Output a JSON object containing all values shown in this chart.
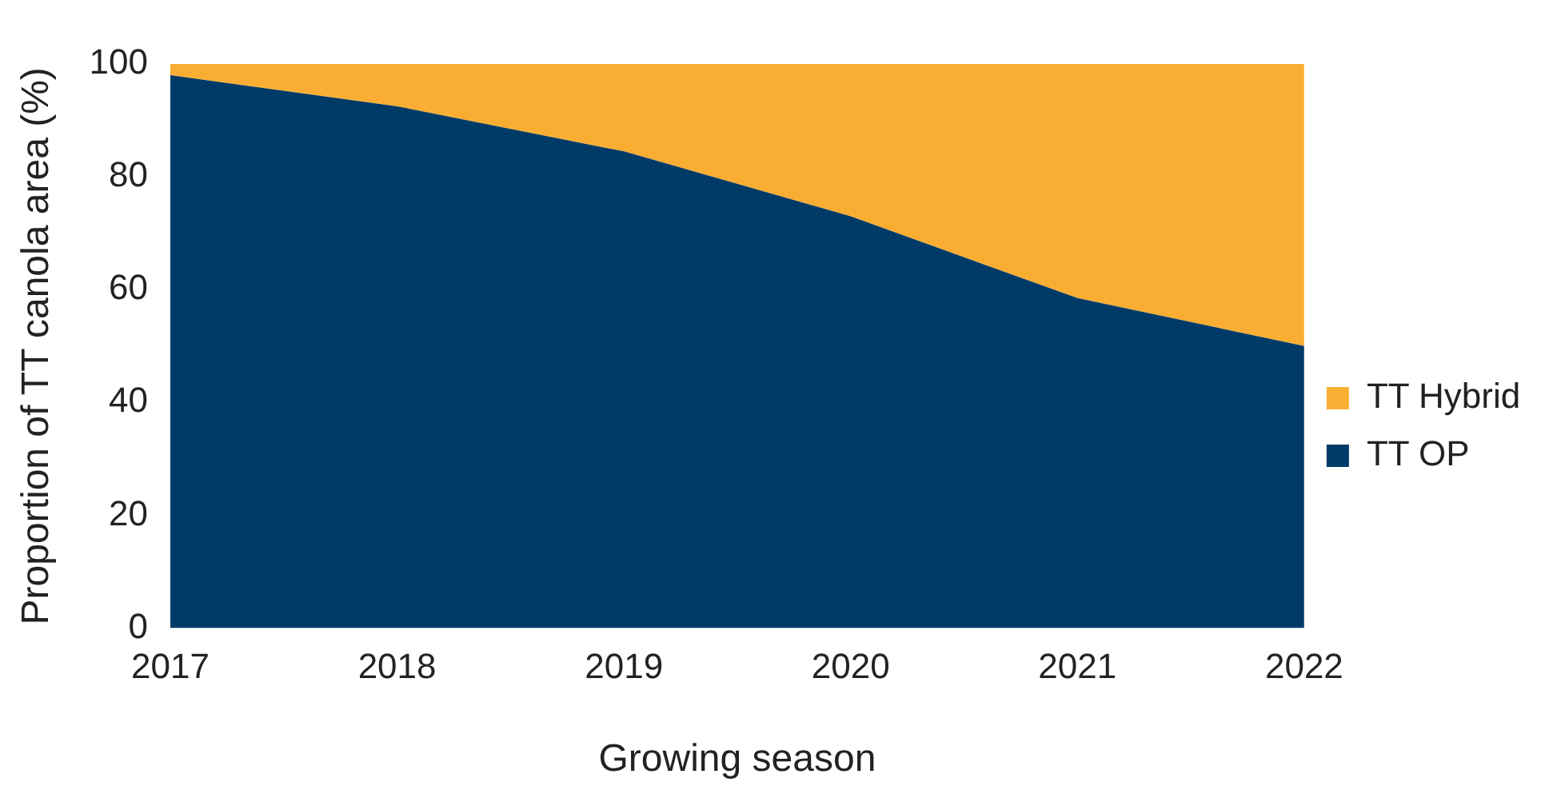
{
  "chart_data": {
    "type": "area",
    "stacked": true,
    "xlabel": "Growing season",
    "ylabel": "Proportion of TT canola area (%)",
    "categories": [
      "2017",
      "2018",
      "2019",
      "2020",
      "2021",
      "2022"
    ],
    "series": [
      {
        "name": "TT OP",
        "color": "#003a66",
        "values": [
          98,
          92.5,
          84.5,
          73,
          58.5,
          50
        ]
      },
      {
        "name": "TT Hybrid",
        "color": "#f9ae33",
        "values": [
          2,
          7.5,
          15.5,
          27,
          41.5,
          50
        ]
      }
    ],
    "ylim": [
      0,
      100
    ],
    "yticks": [
      0,
      20,
      40,
      60,
      80,
      100
    ],
    "legend": "right",
    "marker": "none"
  }
}
